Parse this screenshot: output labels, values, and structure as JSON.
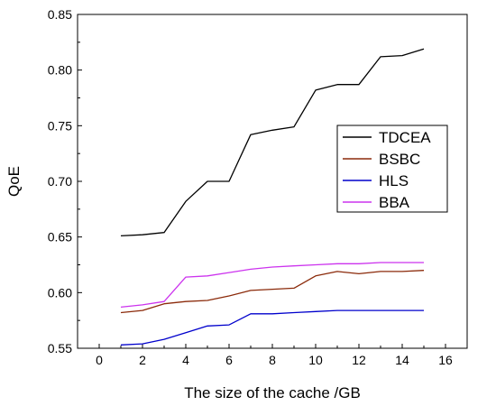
{
  "chart_data": {
    "type": "line",
    "title": "",
    "xlabel": "The size of the cache /GB",
    "ylabel": "QoE",
    "xlim": [
      -1,
      17
    ],
    "ylim": [
      0.55,
      0.85
    ],
    "x_ticks": [
      0,
      2,
      4,
      6,
      8,
      10,
      12,
      14,
      16
    ],
    "y_ticks": [
      0.55,
      0.6,
      0.65,
      0.7,
      0.75,
      0.8,
      0.85
    ],
    "y_tick_labels": [
      "0.55",
      "0.60",
      "0.65",
      "0.70",
      "0.75",
      "0.80",
      "0.85"
    ],
    "grid": false,
    "legend_position": "right",
    "x": [
      1,
      2,
      3,
      4,
      5,
      6,
      7,
      8,
      9,
      10,
      11,
      12,
      13,
      14,
      15
    ],
    "series": [
      {
        "name": "TDCEA",
        "color": "#000000",
        "values": [
          0.651,
          0.652,
          0.654,
          0.682,
          0.7,
          0.7,
          0.742,
          0.746,
          0.749,
          0.782,
          0.787,
          0.787,
          0.812,
          0.813,
          0.819
        ]
      },
      {
        "name": "BSBC",
        "color": "#8b2a0a",
        "values": [
          0.582,
          0.584,
          0.59,
          0.592,
          0.593,
          0.597,
          0.602,
          0.603,
          0.604,
          0.615,
          0.619,
          0.617,
          0.619,
          0.619,
          0.62
        ]
      },
      {
        "name": "HLS",
        "color": "#0000cc",
        "values": [
          0.553,
          0.554,
          0.558,
          0.564,
          0.57,
          0.571,
          0.581,
          0.581,
          0.582,
          0.583,
          0.584,
          0.584,
          0.584,
          0.584,
          0.584
        ]
      },
      {
        "name": "BBA",
        "color": "#cc33ee",
        "values": [
          0.587,
          0.589,
          0.592,
          0.614,
          0.615,
          0.618,
          0.621,
          0.623,
          0.624,
          0.625,
          0.626,
          0.626,
          0.627,
          0.627,
          0.627
        ]
      }
    ]
  }
}
